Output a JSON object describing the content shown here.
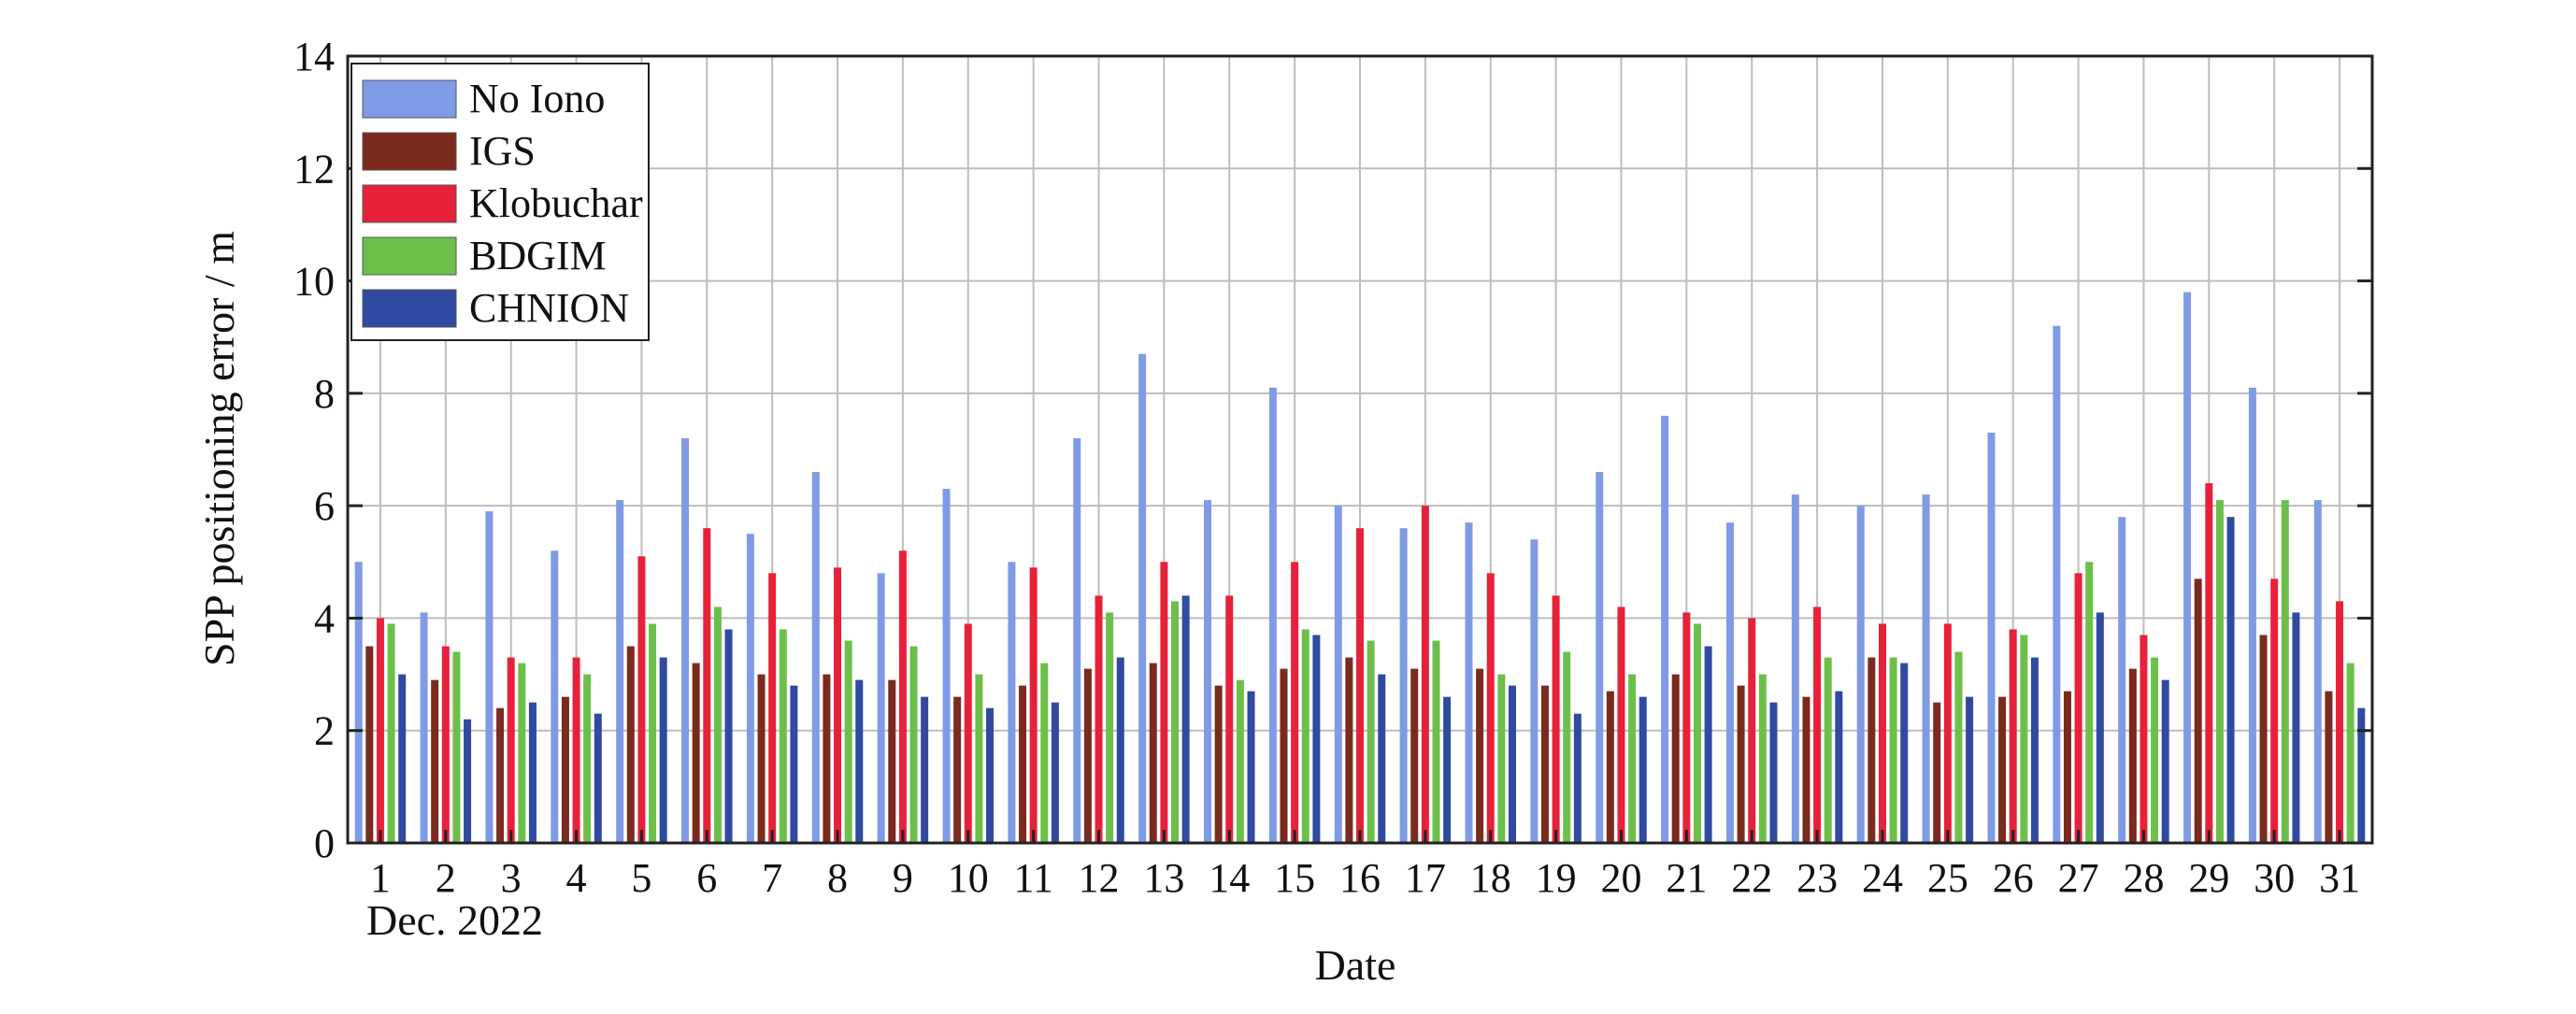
{
  "chart_data": {
    "type": "bar",
    "xlabel": "Date",
    "ylabel": "SPP positioning error / m",
    "x_sublabel": "Dec. 2022",
    "ylim": [
      0,
      14
    ],
    "yticks": [
      0,
      2,
      4,
      6,
      8,
      10,
      12,
      14
    ],
    "grid": true,
    "legend_position": "top-left",
    "categories": [
      "1",
      "2",
      "3",
      "4",
      "5",
      "6",
      "7",
      "8",
      "9",
      "10",
      "11",
      "12",
      "13",
      "14",
      "15",
      "16",
      "17",
      "18",
      "19",
      "20",
      "21",
      "22",
      "23",
      "24",
      "25",
      "26",
      "27",
      "28",
      "29",
      "30",
      "31"
    ],
    "series": [
      {
        "name": "No Iono",
        "color": "#7f9be6",
        "values": [
          5.0,
          4.1,
          5.9,
          5.2,
          6.1,
          7.2,
          5.5,
          6.6,
          4.8,
          6.3,
          5.0,
          7.2,
          8.7,
          6.1,
          8.1,
          6.0,
          5.6,
          5.7,
          5.4,
          6.6,
          7.6,
          5.7,
          6.2,
          6.0,
          6.2,
          7.3,
          9.2,
          5.8,
          9.8,
          8.1,
          6.1
        ]
      },
      {
        "name": "IGS",
        "color": "#7b2a1e",
        "values": [
          3.5,
          2.9,
          2.4,
          2.6,
          3.5,
          3.2,
          3.0,
          3.0,
          2.9,
          2.6,
          2.8,
          3.1,
          3.2,
          2.8,
          3.1,
          3.3,
          3.1,
          3.1,
          2.8,
          2.7,
          3.0,
          2.8,
          2.6,
          3.3,
          2.5,
          2.6,
          2.7,
          3.1,
          4.7,
          3.7,
          2.7
        ]
      },
      {
        "name": "Klobuchar",
        "color": "#e8213a",
        "values": [
          4.0,
          3.5,
          3.3,
          3.3,
          5.1,
          5.6,
          4.8,
          4.9,
          5.2,
          3.9,
          4.9,
          4.4,
          5.0,
          4.4,
          5.0,
          5.6,
          6.0,
          4.8,
          4.4,
          4.2,
          4.1,
          4.0,
          4.2,
          3.9,
          3.9,
          3.8,
          4.8,
          3.7,
          6.4,
          4.7,
          4.3
        ]
      },
      {
        "name": "BDGIM",
        "color": "#6cc04a",
        "values": [
          3.9,
          3.4,
          3.2,
          3.0,
          3.9,
          4.2,
          3.8,
          3.6,
          3.5,
          3.0,
          3.2,
          4.1,
          4.3,
          2.9,
          3.8,
          3.6,
          3.6,
          3.0,
          3.4,
          3.0,
          3.9,
          3.0,
          3.3,
          3.3,
          3.4,
          3.7,
          5.0,
          3.3,
          6.1,
          6.1,
          3.2
        ]
      },
      {
        "name": "CHNION",
        "color": "#2f4aa0",
        "values": [
          3.0,
          2.2,
          2.5,
          2.3,
          3.3,
          3.8,
          2.8,
          2.9,
          2.6,
          2.4,
          2.5,
          3.3,
          4.4,
          2.7,
          3.7,
          3.0,
          2.6,
          2.8,
          2.3,
          2.6,
          3.5,
          2.5,
          2.7,
          3.2,
          2.6,
          3.3,
          4.1,
          2.9,
          5.8,
          4.1,
          2.4
        ]
      }
    ]
  }
}
